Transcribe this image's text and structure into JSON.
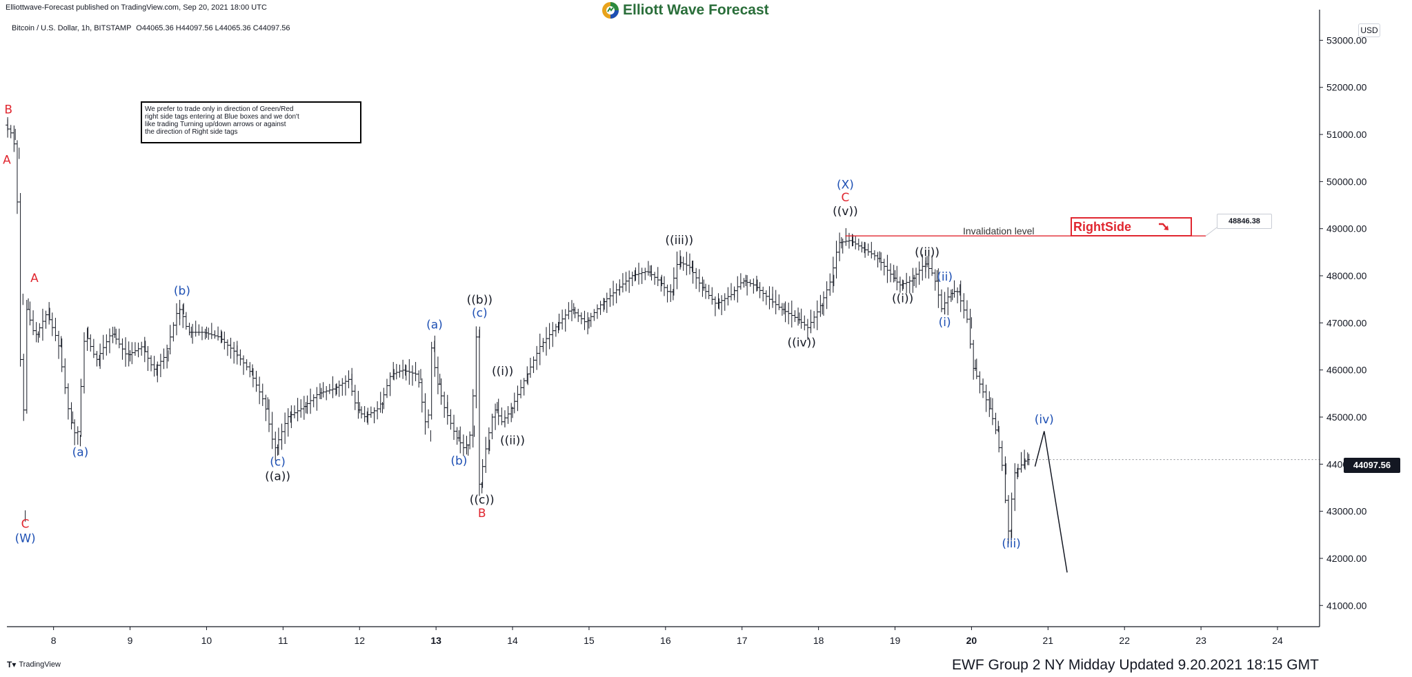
{
  "header": {
    "published_by": "Elliottwave-Forecast published on TradingView.com, Sep 20, 2021 18:00 UTC",
    "brand": "Elliott Wave Forecast"
  },
  "instrument": {
    "symbol_line": "Bitcoin / U.S. Dollar, 1h, BITSTAMP",
    "ohlc": "O44065.36 H44097.56 L44065.36 C44097.56"
  },
  "currency_button": "USD",
  "note": {
    "lines": [
      "We prefer to trade only in direction of Green/Red",
      "right side tags entering at Blue boxes and we don't",
      "like trading Turning up/down arrows or against",
      "the direction of Right side tags"
    ]
  },
  "invalidation": {
    "label": "Invalidation level",
    "price": 48846.38,
    "price_label": "48846.38"
  },
  "rightside": {
    "label": "RightSide",
    "arrow": "down-right-arrow-icon"
  },
  "last_price": {
    "value": 44097.56,
    "label": "44097.56"
  },
  "footer": {
    "tradingview": "TradingView",
    "update": "EWF Group 2 NY Midday Updated 9.20.2021 18:15 GMT"
  },
  "colors": {
    "red": "#e0262f",
    "blue": "#1d4fb3",
    "black": "#131722",
    "grid": "#e6e6e6"
  },
  "chart_data": {
    "type": "line",
    "title": "Bitcoin / U.S. Dollar, 1h, BITSTAMP",
    "xlabel": "",
    "ylabel": "",
    "y_axis_ticks": [
      41000,
      42000,
      43000,
      44000,
      45000,
      46000,
      47000,
      48000,
      49000,
      50000,
      51000,
      52000,
      53000
    ],
    "y_tick_labels": [
      "41000.00",
      "42000.00",
      "43000.00",
      "44000.00",
      "45000.00",
      "46000.00",
      "47000.00",
      "48000.00",
      "49000.00",
      "50000.00",
      "51000.00",
      "52000.00",
      "53000.00"
    ],
    "x_ticks": [
      8,
      9,
      10,
      11,
      12,
      13,
      14,
      15,
      16,
      17,
      18,
      19,
      20,
      21,
      22,
      23,
      24
    ],
    "x_tick_labels": [
      "8",
      "9",
      "10",
      "11",
      "12",
      "13",
      "14",
      "15",
      "16",
      "17",
      "18",
      "19",
      "20",
      "21",
      "22",
      "23",
      "24"
    ],
    "x_bold": [
      "13",
      "20"
    ],
    "xlim": [
      7.39,
      24.55
    ],
    "ylim": [
      40550,
      53650
    ],
    "series": [
      {
        "kind": "price-path",
        "points": [
          [
            7.4,
            51200
          ],
          [
            7.5,
            51000
          ],
          [
            7.55,
            50600
          ],
          [
            7.6,
            47500
          ],
          [
            7.63,
            42900
          ],
          [
            7.67,
            47400
          ],
          [
            7.8,
            46700
          ],
          [
            7.95,
            47200
          ],
          [
            8.1,
            46600
          ],
          [
            8.25,
            45000
          ],
          [
            8.35,
            44500
          ],
          [
            8.45,
            46800
          ],
          [
            8.6,
            46200
          ],
          [
            8.8,
            46800
          ],
          [
            9.0,
            46300
          ],
          [
            9.2,
            46500
          ],
          [
            9.35,
            46000
          ],
          [
            9.5,
            46300
          ],
          [
            9.65,
            47200
          ],
          [
            9.7,
            47300
          ],
          [
            9.8,
            46800
          ],
          [
            10.0,
            46800
          ],
          [
            10.2,
            46700
          ],
          [
            10.4,
            46400
          ],
          [
            10.6,
            46000
          ],
          [
            10.8,
            45300
          ],
          [
            10.93,
            44300
          ],
          [
            11.1,
            45000
          ],
          [
            11.3,
            45200
          ],
          [
            11.5,
            45500
          ],
          [
            11.7,
            45600
          ],
          [
            11.9,
            45800
          ],
          [
            12.0,
            45200
          ],
          [
            12.1,
            45000
          ],
          [
            12.3,
            45200
          ],
          [
            12.45,
            45900
          ],
          [
            12.6,
            46000
          ],
          [
            12.8,
            45900
          ],
          [
            12.93,
            44600
          ],
          [
            12.98,
            46500
          ],
          [
            13.05,
            45800
          ],
          [
            13.15,
            45200
          ],
          [
            13.3,
            44600
          ],
          [
            13.42,
            44300
          ],
          [
            13.5,
            44700
          ],
          [
            13.57,
            46800
          ],
          [
            13.6,
            43500
          ],
          [
            13.7,
            44400
          ],
          [
            13.8,
            45200
          ],
          [
            13.9,
            44900
          ],
          [
            14.0,
            45100
          ],
          [
            14.2,
            45800
          ],
          [
            14.4,
            46500
          ],
          [
            14.6,
            46900
          ],
          [
            14.8,
            47300
          ],
          [
            15.0,
            47000
          ],
          [
            15.2,
            47400
          ],
          [
            15.4,
            47700
          ],
          [
            15.6,
            48000
          ],
          [
            15.8,
            48100
          ],
          [
            15.95,
            47900
          ],
          [
            16.1,
            47600
          ],
          [
            16.2,
            48300
          ],
          [
            16.35,
            48200
          ],
          [
            16.5,
            47800
          ],
          [
            16.7,
            47400
          ],
          [
            16.9,
            47600
          ],
          [
            17.05,
            47900
          ],
          [
            17.2,
            47800
          ],
          [
            17.4,
            47500
          ],
          [
            17.55,
            47300
          ],
          [
            17.75,
            47100
          ],
          [
            17.9,
            46900
          ],
          [
            18.05,
            47300
          ],
          [
            18.2,
            47900
          ],
          [
            18.3,
            48700
          ],
          [
            18.45,
            48750
          ],
          [
            18.6,
            48600
          ],
          [
            18.8,
            48400
          ],
          [
            19.0,
            48000
          ],
          [
            19.1,
            47800
          ],
          [
            19.25,
            47900
          ],
          [
            19.4,
            48200
          ],
          [
            19.42,
            48300
          ],
          [
            19.55,
            48000
          ],
          [
            19.65,
            47300
          ],
          [
            19.75,
            47600
          ],
          [
            19.85,
            47700
          ],
          [
            20.0,
            47000
          ],
          [
            20.05,
            46100
          ],
          [
            20.15,
            45700
          ],
          [
            20.25,
            45300
          ],
          [
            20.35,
            44800
          ],
          [
            20.45,
            43900
          ],
          [
            20.52,
            42500
          ],
          [
            20.6,
            43800
          ],
          [
            20.7,
            44000
          ],
          [
            20.75,
            44098
          ]
        ]
      },
      {
        "kind": "projection",
        "points": [
          [
            20.83,
            43950
          ],
          [
            20.95,
            44700
          ],
          [
            21.25,
            41700
          ]
        ]
      }
    ],
    "annotations": [
      {
        "text": "B",
        "x": 7.41,
        "y": 51450,
        "color": "red"
      },
      {
        "text": "A",
        "x": 7.39,
        "y": 50380,
        "color": "red"
      },
      {
        "text": "A",
        "x": 7.75,
        "y": 47870,
        "color": "red"
      },
      {
        "text": "C",
        "x": 7.63,
        "y": 42650,
        "color": "red"
      },
      {
        "text": "(W)",
        "x": 7.63,
        "y": 42340,
        "color": "blue"
      },
      {
        "text": "(a)",
        "x": 8.35,
        "y": 44170,
        "color": "blue"
      },
      {
        "text": "(b)",
        "x": 9.68,
        "y": 47600,
        "color": "blue"
      },
      {
        "text": "(c)",
        "x": 10.93,
        "y": 43970,
        "color": "blue"
      },
      {
        "text": "((a))",
        "x": 10.93,
        "y": 43660,
        "color": "black"
      },
      {
        "text": "(a)",
        "x": 12.98,
        "y": 46880,
        "color": "blue"
      },
      {
        "text": "(b)",
        "x": 13.3,
        "y": 43990,
        "color": "blue"
      },
      {
        "text": "((b))",
        "x": 13.57,
        "y": 47410,
        "color": "black"
      },
      {
        "text": "(c)",
        "x": 13.57,
        "y": 47130,
        "color": "blue"
      },
      {
        "text": "((c))",
        "x": 13.6,
        "y": 43160,
        "color": "black"
      },
      {
        "text": "B",
        "x": 13.6,
        "y": 42880,
        "color": "red"
      },
      {
        "text": "((i))",
        "x": 13.87,
        "y": 45890,
        "color": "black"
      },
      {
        "text": "((ii))",
        "x": 14.0,
        "y": 44420,
        "color": "black"
      },
      {
        "text": "((iii))",
        "x": 16.18,
        "y": 48670,
        "color": "black"
      },
      {
        "text": "((iv))",
        "x": 17.78,
        "y": 46500,
        "color": "black"
      },
      {
        "text": "(X)",
        "x": 18.35,
        "y": 49850,
        "color": "blue"
      },
      {
        "text": "C",
        "x": 18.35,
        "y": 49580,
        "color": "red"
      },
      {
        "text": "((v))",
        "x": 18.35,
        "y": 49290,
        "color": "black"
      },
      {
        "text": "((ii))",
        "x": 19.42,
        "y": 48420,
        "color": "black"
      },
      {
        "text": "((i))",
        "x": 19.1,
        "y": 47440,
        "color": "black"
      },
      {
        "text": "(ii)",
        "x": 19.65,
        "y": 47900,
        "color": "blue"
      },
      {
        "text": "(i)",
        "x": 19.65,
        "y": 46930,
        "color": "blue"
      },
      {
        "text": "(iv)",
        "x": 20.95,
        "y": 44870,
        "color": "blue"
      },
      {
        "text": "(iii)",
        "x": 20.52,
        "y": 42230,
        "color": "blue"
      }
    ]
  }
}
